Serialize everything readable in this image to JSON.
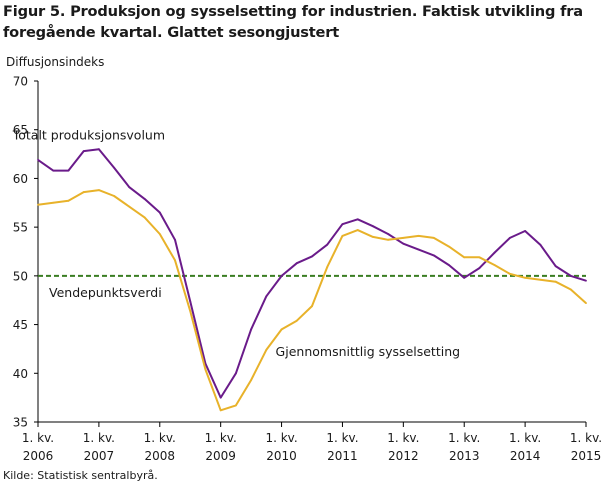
{
  "figure": {
    "title": "Figur 5. Produksjon og sysselsetting for industrien. Faktisk utvikling fra foregående kvartal. Glattet sesongjustert",
    "source": "Kilde: Statistisk sentralbyrå."
  },
  "chart_data": {
    "type": "line",
    "title": "Figur 5. Produksjon og sysselsetting for industrien. Faktisk utvikling fra foregående kvartal. Glattet sesongjustert",
    "ylabel": "Diffusjonsindeks",
    "xlabel": "",
    "ylim": [
      35,
      70
    ],
    "yticks": [
      35,
      40,
      45,
      50,
      55,
      60,
      65,
      70
    ],
    "grid": false,
    "x_tick_labels": [
      {
        "line1": "1. kv.",
        "line2": "2006",
        "index": 0
      },
      {
        "line1": "1. kv.",
        "line2": "2007",
        "index": 4
      },
      {
        "line1": "1. kv.",
        "line2": "2008",
        "index": 8
      },
      {
        "line1": "1. kv.",
        "line2": "2009",
        "index": 12
      },
      {
        "line1": "1. kv.",
        "line2": "2010",
        "index": 16
      },
      {
        "line1": "1. kv.",
        "line2": "2011",
        "index": 20
      },
      {
        "line1": "1. kv.",
        "line2": "2012",
        "index": 24
      },
      {
        "line1": "1. kv.",
        "line2": "2013",
        "index": 28
      },
      {
        "line1": "1. kv.",
        "line2": "2014",
        "index": 32
      },
      {
        "line1": "1. kv.",
        "line2": "2015",
        "index": 36
      }
    ],
    "x_count": 37,
    "series": [
      {
        "name": "Totalt produksjonsvolum",
        "color": "#6a1b8a",
        "values": [
          61.9,
          60.8,
          60.8,
          62.8,
          63.0,
          61.1,
          59.1,
          57.9,
          56.5,
          53.7,
          47.4,
          41.0,
          37.5,
          40.0,
          44.5,
          47.9,
          50.0,
          51.3,
          52.0,
          53.2,
          55.3,
          55.8,
          55.1,
          54.3,
          53.3,
          52.7,
          52.1,
          51.1,
          49.8,
          50.8,
          52.4,
          53.9,
          54.6,
          53.2,
          51.0,
          50.0,
          49.5
        ],
        "label_anchor_index": 4,
        "label_value": 64.5
      },
      {
        "name": "Gjennomsnittlig  sysselsetting",
        "color": "#e8b22a",
        "values": [
          57.3,
          57.5,
          57.7,
          58.6,
          58.8,
          58.2,
          57.1,
          56.0,
          54.3,
          51.6,
          46.4,
          40.4,
          36.2,
          36.7,
          39.3,
          42.4,
          44.5,
          45.4,
          46.9,
          50.9,
          54.1,
          54.7,
          54.0,
          53.7,
          53.9,
          54.1,
          53.9,
          53.0,
          51.9,
          51.9,
          51.1,
          50.2,
          49.8,
          49.6,
          49.4,
          48.6,
          47.2
        ],
        "label_anchor_index": 16,
        "label_value": 42.3
      }
    ],
    "reference_line": {
      "label": "Vendepunktsverdi",
      "value": 50,
      "color": "#3a7d22",
      "style": "dashed"
    }
  }
}
